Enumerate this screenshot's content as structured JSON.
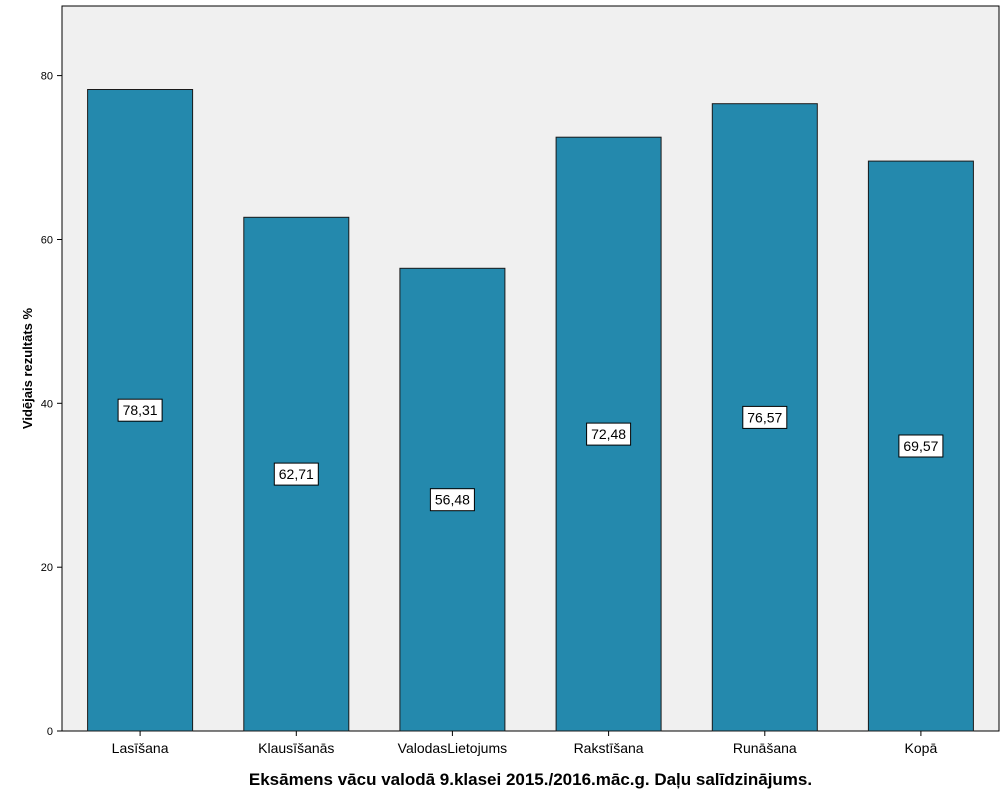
{
  "chart_data": {
    "type": "bar",
    "title": "",
    "xlabel": "Eksāmens vācu valodā 9.klasei 2015./2016.māc.g. Daļu salīdzinājums.",
    "ylabel": "Vidējais rezultāts %",
    "categories": [
      "Lasīšana",
      "Klausīšanās",
      "ValodasLietojums",
      "Rakstīšana",
      "Runāšana",
      "Kopā"
    ],
    "values": [
      78.31,
      62.71,
      56.48,
      72.48,
      76.57,
      69.57
    ],
    "value_labels": [
      "78,31",
      "62,71",
      "56,48",
      "72,48",
      "76,57",
      "69,57"
    ],
    "ylim": [
      0,
      88.5
    ],
    "yticks": [
      0,
      20,
      40,
      60,
      80
    ],
    "ytick_labels": [
      "0",
      "20",
      "40",
      "60",
      "80"
    ],
    "grid": false,
    "legend": "none",
    "colors": {
      "bar": "#2489AD",
      "plot_background": "#F0F0F0",
      "axis": "#000000",
      "label_box": "#FFFFFF"
    }
  }
}
